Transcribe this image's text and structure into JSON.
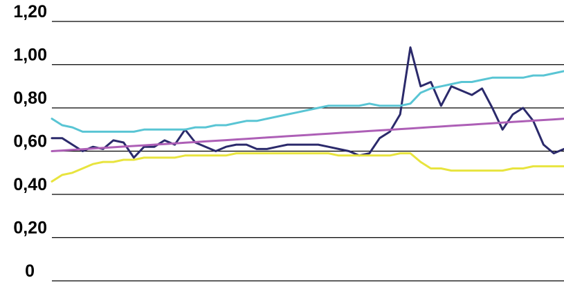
{
  "chart_data": {
    "type": "line",
    "title": "",
    "xlabel": "",
    "ylabel": "",
    "ylim": [
      0,
      1.2
    ],
    "y_ticks": [
      {
        "value": 1.2,
        "label": "1,20"
      },
      {
        "value": 1.0,
        "label": "1,00"
      },
      {
        "value": 0.8,
        "label": "0,80"
      },
      {
        "value": 0.6,
        "label": "0,60"
      },
      {
        "value": 0.4,
        "label": "0,40"
      },
      {
        "value": 0.2,
        "label": "0,20"
      },
      {
        "value": 0.0,
        "label": "0"
      }
    ],
    "grid": true,
    "x_axis_labels": false,
    "x": [
      0,
      4,
      8,
      12,
      16,
      20,
      24,
      28,
      32,
      36,
      40,
      44,
      48,
      52,
      56,
      60,
      64,
      68,
      72,
      76,
      80,
      84,
      88,
      92,
      96,
      100,
      104,
      108,
      112,
      116,
      120,
      124,
      128,
      132,
      136,
      140,
      144,
      148,
      152,
      156,
      160,
      164,
      168,
      172,
      176,
      180,
      184,
      188,
      192,
      196,
      200
    ],
    "series": [
      {
        "color": "#2b2a6b",
        "values": [
          0.66,
          0.66,
          0.63,
          0.6,
          0.62,
          0.61,
          0.65,
          0.64,
          0.57,
          0.62,
          0.62,
          0.65,
          0.63,
          0.7,
          0.64,
          0.62,
          0.6,
          0.62,
          0.63,
          0.63,
          0.61,
          0.61,
          0.62,
          0.63,
          0.63,
          0.63,
          0.63,
          0.62,
          0.61,
          0.6,
          0.58,
          0.59,
          0.66,
          0.69,
          0.77,
          1.08,
          0.9,
          0.92,
          0.81,
          0.9,
          0.88,
          0.86,
          0.89,
          0.8,
          0.7,
          0.77,
          0.8,
          0.74,
          0.63,
          0.59,
          0.61
        ]
      },
      {
        "color": "#59c5d4",
        "values": [
          0.75,
          0.72,
          0.71,
          0.69,
          0.69,
          0.69,
          0.69,
          0.69,
          0.69,
          0.7,
          0.7,
          0.7,
          0.7,
          0.7,
          0.71,
          0.71,
          0.72,
          0.72,
          0.73,
          0.74,
          0.74,
          0.75,
          0.76,
          0.77,
          0.78,
          0.79,
          0.8,
          0.81,
          0.81,
          0.81,
          0.81,
          0.82,
          0.81,
          0.81,
          0.81,
          0.82,
          0.87,
          0.89,
          0.9,
          0.91,
          0.92,
          0.92,
          0.93,
          0.94,
          0.94,
          0.94,
          0.94,
          0.95,
          0.95,
          0.96,
          0.97
        ]
      },
      {
        "color": "#ad5fb6",
        "values": [
          0.6,
          0.603,
          0.606,
          0.609,
          0.612,
          0.615,
          0.618,
          0.621,
          0.624,
          0.627,
          0.63,
          0.633,
          0.636,
          0.639,
          0.642,
          0.645,
          0.648,
          0.651,
          0.654,
          0.657,
          0.66,
          0.663,
          0.666,
          0.669,
          0.672,
          0.675,
          0.678,
          0.681,
          0.684,
          0.687,
          0.69,
          0.693,
          0.696,
          0.699,
          0.702,
          0.705,
          0.708,
          0.711,
          0.714,
          0.717,
          0.72,
          0.723,
          0.726,
          0.729,
          0.732,
          0.735,
          0.738,
          0.741,
          0.744,
          0.747,
          0.75
        ]
      },
      {
        "color": "#e8e43e",
        "values": [
          0.46,
          0.49,
          0.5,
          0.52,
          0.54,
          0.55,
          0.55,
          0.56,
          0.56,
          0.57,
          0.57,
          0.57,
          0.57,
          0.58,
          0.58,
          0.58,
          0.58,
          0.58,
          0.59,
          0.59,
          0.59,
          0.59,
          0.59,
          0.59,
          0.59,
          0.59,
          0.59,
          0.59,
          0.58,
          0.58,
          0.58,
          0.58,
          0.58,
          0.58,
          0.59,
          0.59,
          0.55,
          0.52,
          0.52,
          0.51,
          0.51,
          0.51,
          0.51,
          0.51,
          0.51,
          0.52,
          0.52,
          0.53,
          0.53,
          0.53,
          0.53
        ]
      }
    ]
  }
}
